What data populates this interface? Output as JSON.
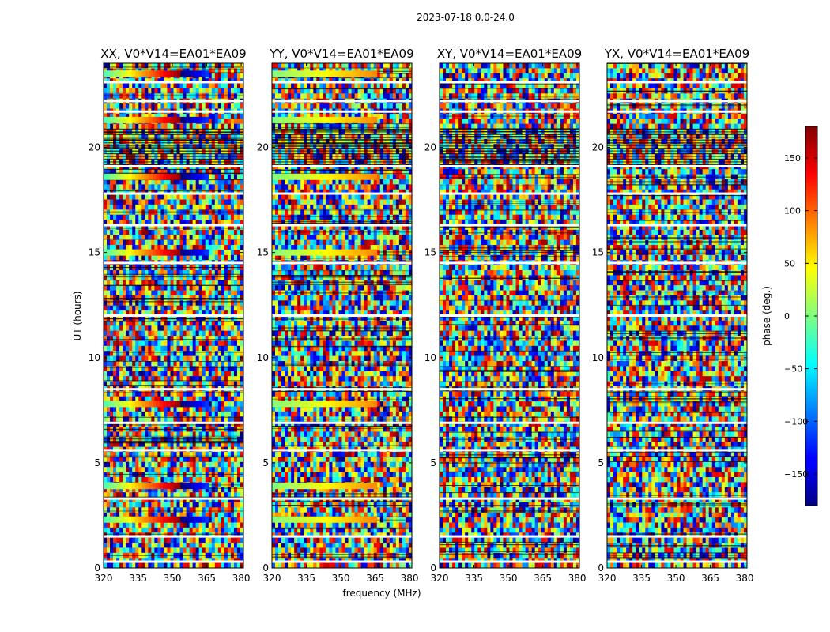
{
  "chart_data": {
    "type": "heatmap",
    "suptitle": "2023-07-18 0.0-24.0",
    "xlabel": "frequency (MHz)",
    "ylabel": "UT (hours)",
    "xlim": [
      320,
      381
    ],
    "ylim": [
      0,
      24
    ],
    "xticks": [
      320,
      335,
      350,
      365,
      380
    ],
    "yticks": [
      0,
      5,
      10,
      15,
      20
    ],
    "panels": [
      {
        "title": "XX, V0*V14=EA01*EA09"
      },
      {
        "title": "YY, V0*V14=EA01*EA09"
      },
      {
        "title": "XY, V0*V14=EA01*EA09"
      },
      {
        "title": "YX, V0*V14=EA01*EA09"
      }
    ],
    "colorbar": {
      "label": "phase (deg.)",
      "colormap": "jet",
      "range": [
        -180,
        180
      ],
      "ticks": [
        -150,
        -100,
        -50,
        0,
        50,
        100,
        150
      ]
    },
    "colors": {
      "jet_dark_blue": "#000080",
      "jet_blue": "#0000ff",
      "jet_cyan": "#00ffff",
      "jet_yellow": "#ffff00",
      "jet_red": "#ff0000",
      "jet_dark_red": "#800000"
    },
    "coherent_bands_hours": [
      {
        "ut": 23.5,
        "panels": [
          0,
          1
        ]
      },
      {
        "ut": 21.3,
        "panels": [
          0,
          1
        ]
      },
      {
        "ut": 18.6,
        "panels": [
          0,
          1
        ]
      },
      {
        "ut": 15.0,
        "panels": [
          0,
          1
        ]
      },
      {
        "ut": 7.8,
        "panels": [
          0,
          1
        ]
      },
      {
        "ut": 3.9,
        "panels": [
          0,
          1
        ]
      },
      {
        "ut": 2.3,
        "panels": [
          0,
          1
        ]
      }
    ],
    "gaps_hours": [
      23.1,
      22.2,
      21.7,
      19.1,
      17.8,
      16.3,
      14.5,
      12.0,
      8.5,
      6.9,
      5.6,
      3.3,
      1.5,
      0.3
    ]
  }
}
